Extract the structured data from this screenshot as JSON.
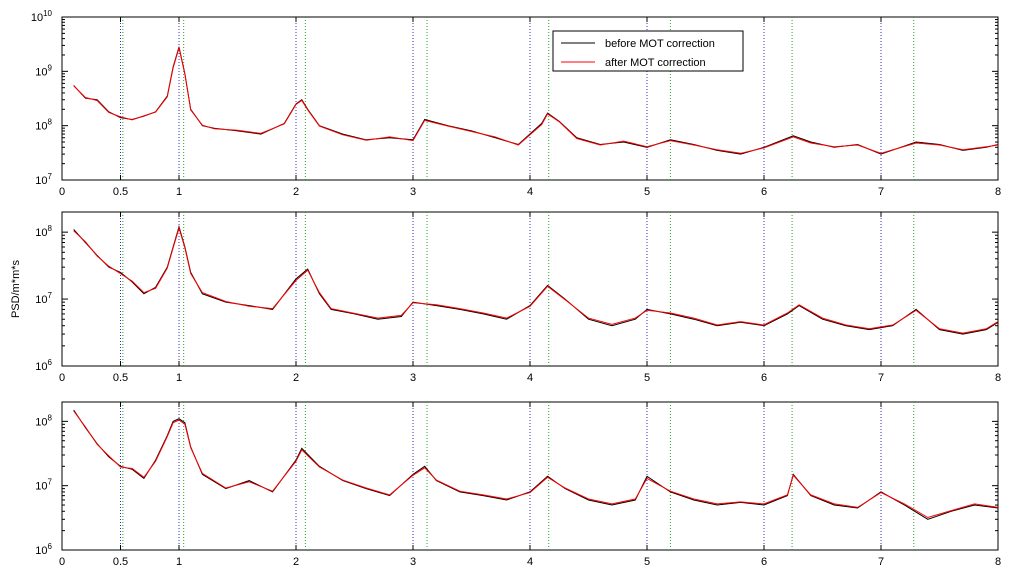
{
  "ylabel": "PSD/m*m*s",
  "colors": {
    "series_before": "#000000",
    "series_after": "#ff0000",
    "vline_blue": "#3030c0",
    "vline_green": "#2ca02c"
  },
  "chart_data": [
    {
      "type": "line",
      "yscale": "log",
      "xlim": [
        0,
        8
      ],
      "ylim": [
        10000000,
        10000000000
      ],
      "x_ticks": [
        0,
        0.5,
        1,
        2,
        3,
        4,
        5,
        6,
        7,
        8
      ],
      "x_tick_labels": [
        "0",
        "0.5",
        "1",
        "2",
        "3",
        "4",
        "5",
        "6",
        "7",
        "8"
      ],
      "y_ticks": [
        10000000,
        100000000,
        1000000000,
        10000000000
      ],
      "y_tick_labels": [
        {
          "base": "10",
          "exp": "7"
        },
        {
          "base": "10",
          "exp": "8"
        },
        {
          "base": "10",
          "exp": "9"
        },
        {
          "base": "10",
          "exp": "10"
        }
      ],
      "vlines_blue": [
        0.5,
        1,
        2,
        3,
        4,
        5,
        6,
        7
      ],
      "vlines_green": [
        0.52,
        1.04,
        2.08,
        3.12,
        4.16,
        5.2,
        6.24,
        7.28
      ],
      "legend": {
        "position": "top-right",
        "entries": [
          "before MOT correction",
          "after MOT correction"
        ]
      },
      "series": [
        {
          "name": "before MOT correction",
          "x": [
            0.1,
            0.2,
            0.3,
            0.4,
            0.5,
            0.6,
            0.7,
            0.8,
            0.9,
            0.95,
            1.0,
            1.05,
            1.1,
            1.2,
            1.3,
            1.5,
            1.7,
            1.9,
            2.0,
            2.05,
            2.1,
            2.2,
            2.4,
            2.6,
            2.8,
            3.0,
            3.1,
            3.3,
            3.5,
            3.7,
            3.9,
            4.1,
            4.15,
            4.25,
            4.4,
            4.6,
            4.8,
            5.0,
            5.2,
            5.4,
            5.6,
            5.8,
            6.0,
            6.25,
            6.4,
            6.6,
            6.8,
            7.0,
            7.3,
            7.5,
            7.7,
            7.9,
            8.0
          ],
          "y": [
            550000000,
            320000000,
            300000000,
            180000000,
            140000000,
            130000000,
            150000000,
            180000000,
            350000000,
            1200000000,
            2800000000,
            900000000,
            200000000,
            100000000,
            90000000,
            80000000,
            70000000,
            110000000,
            250000000,
            300000000,
            200000000,
            100000000,
            70000000,
            55000000,
            60000000,
            55000000,
            130000000,
            100000000,
            80000000,
            60000000,
            45000000,
            110000000,
            170000000,
            120000000,
            60000000,
            45000000,
            50000000,
            40000000,
            55000000,
            45000000,
            35000000,
            30000000,
            40000000,
            65000000,
            50000000,
            40000000,
            45000000,
            30000000,
            50000000,
            45000000,
            35000000,
            40000000,
            45000000
          ]
        },
        {
          "name": "after MOT correction",
          "x": [
            0.1,
            0.2,
            0.3,
            0.4,
            0.5,
            0.6,
            0.7,
            0.8,
            0.9,
            0.95,
            1.0,
            1.05,
            1.1,
            1.2,
            1.3,
            1.5,
            1.7,
            1.9,
            2.0,
            2.05,
            2.1,
            2.2,
            2.4,
            2.6,
            2.8,
            3.0,
            3.1,
            3.3,
            3.5,
            3.7,
            3.9,
            4.1,
            4.15,
            4.25,
            4.4,
            4.6,
            4.8,
            5.0,
            5.2,
            5.4,
            5.6,
            5.8,
            6.0,
            6.25,
            6.4,
            6.6,
            6.8,
            7.0,
            7.3,
            7.5,
            7.7,
            7.9,
            8.0
          ],
          "y": [
            540000000,
            330000000,
            290000000,
            175000000,
            145000000,
            128000000,
            152000000,
            178000000,
            340000000,
            1150000000,
            2700000000,
            880000000,
            195000000,
            102000000,
            88000000,
            82000000,
            72000000,
            108000000,
            245000000,
            290000000,
            195000000,
            98000000,
            68000000,
            54000000,
            62000000,
            53000000,
            125000000,
            98000000,
            78000000,
            62000000,
            44000000,
            105000000,
            165000000,
            118000000,
            58000000,
            44000000,
            52000000,
            41000000,
            53000000,
            44000000,
            36000000,
            31000000,
            39000000,
            62000000,
            48000000,
            41000000,
            44000000,
            31000000,
            48000000,
            44000000,
            36000000,
            41000000,
            44000000
          ]
        }
      ]
    },
    {
      "type": "line",
      "yscale": "log",
      "xlim": [
        0,
        8
      ],
      "ylim": [
        1000000,
        200000000
      ],
      "x_ticks": [
        0,
        0.5,
        1,
        2,
        3,
        4,
        5,
        6,
        7,
        8
      ],
      "x_tick_labels": [
        "0",
        "0.5",
        "1",
        "2",
        "3",
        "4",
        "5",
        "6",
        "7",
        "8"
      ],
      "y_ticks": [
        1000000,
        10000000,
        100000000
      ],
      "y_tick_labels": [
        {
          "base": "10",
          "exp": "6"
        },
        {
          "base": "10",
          "exp": "7"
        },
        {
          "base": "10",
          "exp": "8"
        }
      ],
      "vlines_blue": [
        0.5,
        1,
        2,
        3,
        4,
        5,
        6,
        7
      ],
      "vlines_green": [
        0.52,
        1.04,
        2.08,
        3.12,
        4.16,
        5.2,
        6.24,
        7.28
      ],
      "series": [
        {
          "name": "before MOT correction",
          "x": [
            0.1,
            0.2,
            0.3,
            0.4,
            0.5,
            0.6,
            0.7,
            0.8,
            0.9,
            0.95,
            1.0,
            1.05,
            1.1,
            1.2,
            1.4,
            1.6,
            1.8,
            2.0,
            2.1,
            2.2,
            2.3,
            2.5,
            2.7,
            2.9,
            3.0,
            3.2,
            3.4,
            3.6,
            3.8,
            4.0,
            4.15,
            4.3,
            4.5,
            4.7,
            4.9,
            5.0,
            5.2,
            5.4,
            5.6,
            5.8,
            6.0,
            6.2,
            6.3,
            6.5,
            6.7,
            6.9,
            7.1,
            7.3,
            7.5,
            7.7,
            7.9,
            8.0
          ],
          "y": [
            110000000,
            70000000,
            45000000,
            30000000,
            25000000,
            18000000,
            12000000,
            15000000,
            30000000,
            60000000,
            120000000,
            60000000,
            25000000,
            12000000,
            9000000,
            8000000,
            7000000,
            20000000,
            28000000,
            12000000,
            7000000,
            6000000,
            5000000,
            5500000,
            9000000,
            8000000,
            7000000,
            6000000,
            5000000,
            8000000,
            16000000,
            10000000,
            5000000,
            4000000,
            5000000,
            7000000,
            6000000,
            5000000,
            4000000,
            4500000,
            4000000,
            6000000,
            8000000,
            5000000,
            4000000,
            3500000,
            4000000,
            7000000,
            3500000,
            3000000,
            3500000,
            4500000
          ]
        },
        {
          "name": "after MOT correction",
          "x": [
            0.1,
            0.2,
            0.3,
            0.4,
            0.5,
            0.6,
            0.7,
            0.8,
            0.9,
            0.95,
            1.0,
            1.05,
            1.1,
            1.2,
            1.4,
            1.6,
            1.8,
            2.0,
            2.1,
            2.2,
            2.3,
            2.5,
            2.7,
            2.9,
            3.0,
            3.2,
            3.4,
            3.6,
            3.8,
            4.0,
            4.15,
            4.3,
            4.5,
            4.7,
            4.9,
            5.0,
            5.2,
            5.4,
            5.6,
            5.8,
            6.0,
            6.2,
            6.3,
            6.5,
            6.7,
            6.9,
            7.1,
            7.3,
            7.5,
            7.7,
            7.9,
            8.0
          ],
          "y": [
            105000000,
            72000000,
            44000000,
            31000000,
            24000000,
            18500000,
            12500000,
            14500000,
            29000000,
            58000000,
            115000000,
            58000000,
            24000000,
            12500000,
            9200000,
            7800000,
            7200000,
            19000000,
            27000000,
            12500000,
            7200000,
            6100000,
            5200000,
            5700000,
            8800000,
            8200000,
            7200000,
            6200000,
            5200000,
            7800000,
            15500000,
            9800000,
            5200000,
            4200000,
            5200000,
            6800000,
            6200000,
            5200000,
            4100000,
            4600000,
            4100000,
            6200000,
            8200000,
            5200000,
            4100000,
            3600000,
            4100000,
            6800000,
            3600000,
            3100000,
            3600000,
            4600000
          ]
        }
      ]
    },
    {
      "type": "line",
      "yscale": "log",
      "xlim": [
        0,
        8
      ],
      "ylim": [
        1000000,
        200000000
      ],
      "x_ticks": [
        0,
        0.5,
        1,
        2,
        3,
        4,
        5,
        6,
        7,
        8
      ],
      "x_tick_labels": [
        "0",
        "0.5",
        "1",
        "2",
        "3",
        "4",
        "5",
        "6",
        "7",
        "8"
      ],
      "y_ticks": [
        1000000,
        10000000,
        100000000
      ],
      "y_tick_labels": [
        {
          "base": "10",
          "exp": "6"
        },
        {
          "base": "10",
          "exp": "7"
        },
        {
          "base": "10",
          "exp": "8"
        }
      ],
      "vlines_blue": [
        0.5,
        1,
        2,
        3,
        4,
        5,
        6,
        7
      ],
      "vlines_green": [
        0.52,
        1.04,
        2.08,
        3.12,
        4.16,
        5.2,
        6.24,
        7.28
      ],
      "series": [
        {
          "name": "before MOT correction",
          "x": [
            0.1,
            0.2,
            0.3,
            0.4,
            0.5,
            0.6,
            0.7,
            0.8,
            0.9,
            0.95,
            1.0,
            1.05,
            1.1,
            1.2,
            1.4,
            1.6,
            1.8,
            2.0,
            2.05,
            2.2,
            2.4,
            2.6,
            2.8,
            3.0,
            3.1,
            3.2,
            3.4,
            3.6,
            3.8,
            4.0,
            4.15,
            4.3,
            4.5,
            4.7,
            4.9,
            5.0,
            5.2,
            5.4,
            5.6,
            5.8,
            6.0,
            6.2,
            6.25,
            6.4,
            6.6,
            6.8,
            7.0,
            7.2,
            7.4,
            7.6,
            7.8,
            8.0
          ],
          "y": [
            150000000,
            80000000,
            45000000,
            28000000,
            20000000,
            18000000,
            13000000,
            25000000,
            60000000,
            100000000,
            110000000,
            95000000,
            40000000,
            15000000,
            9000000,
            12000000,
            8000000,
            25000000,
            38000000,
            20000000,
            12000000,
            9000000,
            7000000,
            15000000,
            20000000,
            12000000,
            8000000,
            7000000,
            6000000,
            8000000,
            14000000,
            9000000,
            6000000,
            5000000,
            6000000,
            14000000,
            8000000,
            6000000,
            5000000,
            5500000,
            5000000,
            7000000,
            15000000,
            7000000,
            5000000,
            4500000,
            8000000,
            5000000,
            3000000,
            4000000,
            5000000,
            4500000
          ]
        },
        {
          "name": "after MOT correction",
          "x": [
            0.1,
            0.2,
            0.3,
            0.4,
            0.5,
            0.6,
            0.7,
            0.8,
            0.9,
            0.95,
            1.0,
            1.05,
            1.1,
            1.2,
            1.4,
            1.6,
            1.8,
            2.0,
            2.05,
            2.2,
            2.4,
            2.6,
            2.8,
            3.0,
            3.1,
            3.2,
            3.4,
            3.6,
            3.8,
            4.0,
            4.15,
            4.3,
            4.5,
            4.7,
            4.9,
            5.0,
            5.2,
            5.4,
            5.6,
            5.8,
            6.0,
            6.2,
            6.25,
            6.4,
            6.6,
            6.8,
            7.0,
            7.2,
            7.4,
            7.6,
            7.8,
            8.0
          ],
          "y": [
            145000000,
            82000000,
            44000000,
            29000000,
            19500000,
            18500000,
            13500000,
            24000000,
            58000000,
            95000000,
            105000000,
            90000000,
            39000000,
            15500000,
            9200000,
            11500000,
            8200000,
            24000000,
            36000000,
            19500000,
            12200000,
            9200000,
            7200000,
            14500000,
            19000000,
            12200000,
            8200000,
            7200000,
            6200000,
            7800000,
            13500000,
            9200000,
            6200000,
            5200000,
            6200000,
            13000000,
            8200000,
            6200000,
            5200000,
            5600000,
            5200000,
            7200000,
            14500000,
            7200000,
            5200000,
            4600000,
            7800000,
            5200000,
            3200000,
            4100000,
            5200000,
            4600000
          ]
        }
      ]
    }
  ]
}
